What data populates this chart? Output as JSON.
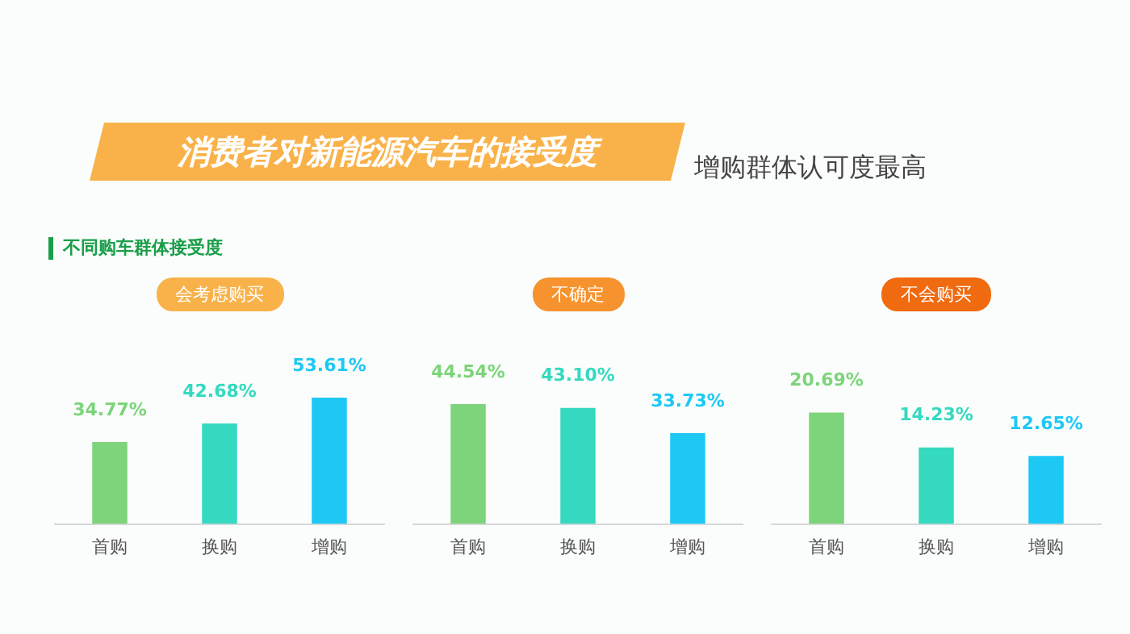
{
  "chart_data": [
    {
      "type": "other",
      "title": "消费者对新能源汽车的接受度",
      "subtitle": "增购群体认可度最高",
      "annotations": [
        "不同购车群体接受度"
      ]
    },
    {
      "type": "bar",
      "title": "会考虑购买",
      "categories": [
        "首购",
        "换购",
        "增购"
      ],
      "values": [
        34.77,
        42.68,
        53.61
      ],
      "colors": [
        "#7dd47a",
        "#35d9c0",
        "#1ec8f5"
      ],
      "value_labels": [
        "34.77%",
        "42.68%",
        "53.61%"
      ],
      "tick_labels": "x",
      "grid": false,
      "legend": false
    },
    {
      "type": "bar",
      "title": "不确定",
      "categories": [
        "首购",
        "换购",
        "增购"
      ],
      "values": [
        44.54,
        43.1,
        33.73
      ],
      "colors": [
        "#7dd47a",
        "#35d9c0",
        "#1ec8f5"
      ],
      "value_labels": [
        "44.54%",
        "43.10%",
        "33.73%"
      ],
      "tick_labels": "x",
      "grid": false,
      "legend": false
    },
    {
      "type": "bar",
      "title": "不会购买",
      "categories": [
        "首购",
        "换购",
        "增购"
      ],
      "values": [
        20.69,
        14.23,
        12.65
      ],
      "colors": [
        "#7dd47a",
        "#35d9c0",
        "#1ec8f5"
      ],
      "value_labels": [
        "20.69%",
        "14.23%",
        "12.65%"
      ],
      "tick_labels": "x",
      "grid": false,
      "legend": false
    }
  ]
}
